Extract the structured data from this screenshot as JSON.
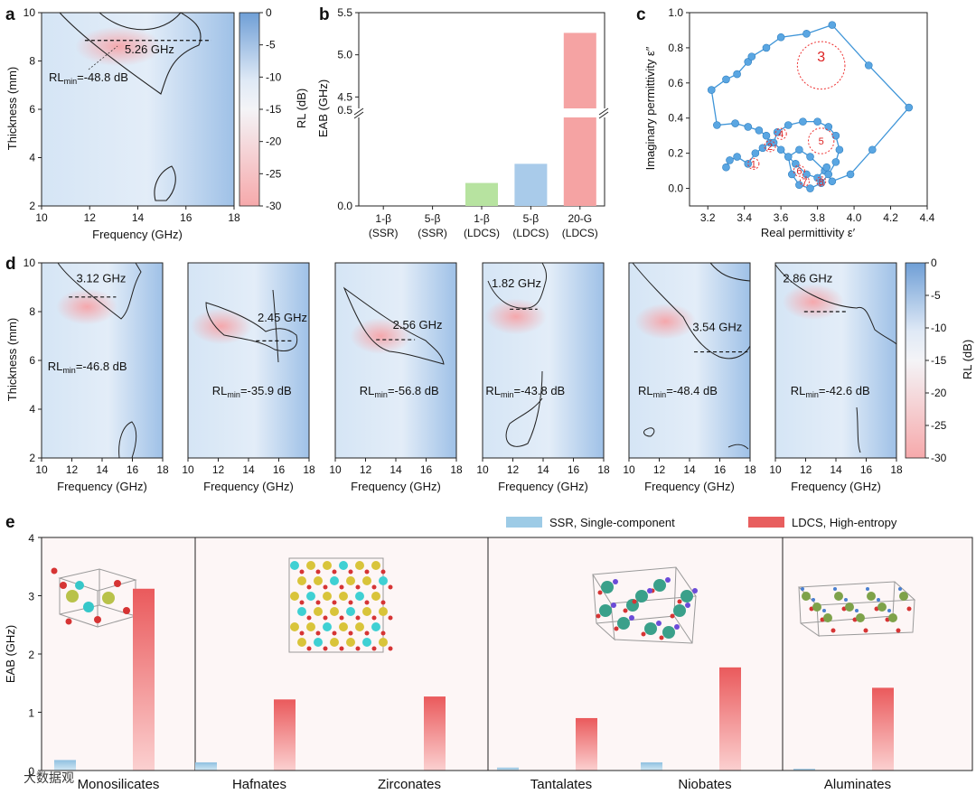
{
  "panels": {
    "a": "a",
    "b": "b",
    "c": "c",
    "d": "d",
    "e": "e"
  },
  "watermark": "大数据观",
  "chart_data": [
    {
      "id": "a",
      "type": "heatmap",
      "xlabel": "Frequency (GHz)",
      "ylabel": "Thickness (mm)",
      "xlim": [
        10,
        18
      ],
      "ylim": [
        2,
        10
      ],
      "xticks": [
        "10",
        "12",
        "14",
        "16",
        "18"
      ],
      "yticks": [
        "2",
        "4",
        "6",
        "8",
        "10"
      ],
      "colorbar": {
        "label": "RL (dB)",
        "range": [
          -30,
          0
        ],
        "ticks": [
          "0",
          "-5",
          "-10",
          "-15",
          "-20",
          "-25",
          "-30"
        ]
      },
      "annotations": {
        "bandwidth": "5.26 GHz",
        "rlmin_value": "=-48.8 dB"
      },
      "rlmin_label": "RL",
      "rlmin_sub": "min",
      "band": {
        "x1": 11.8,
        "x2": 17.06,
        "y": 8.85
      },
      "hotspot": {
        "x": 13.2,
        "y": 8.6
      }
    },
    {
      "id": "b",
      "type": "bar",
      "ylabel": "EAB (GHz)",
      "categories": [
        "1-β (SSR)",
        "5-β (SSR)",
        "1-β (LDCS)",
        "5-β (LDCS)",
        "20-G (LDCS)"
      ],
      "cat_line1": [
        "1-β",
        "5-β",
        "1-β",
        "5-β",
        "20-G"
      ],
      "cat_line2": [
        "(SSR)",
        "(SSR)",
        "(LDCS)",
        "(LDCS)",
        "(LDCS)"
      ],
      "values": [
        0,
        0,
        0.12,
        0.22,
        5.26
      ],
      "colors": [
        "#cccccc",
        "#cccccc",
        "#b7e3a0",
        "#a9cbea",
        "#f5a3a3"
      ],
      "axis_break": [
        0.5,
        4.3
      ],
      "yticks": [
        "0.0",
        "0.5",
        "4.5",
        "5.0",
        "5.5"
      ],
      "ylim": [
        0,
        5.5
      ]
    },
    {
      "id": "c",
      "type": "scatter",
      "xlabel": "Real permittivity ε′",
      "ylabel": "Imaginary permittivity ε″",
      "xlim": [
        3.1,
        4.4
      ],
      "ylim": [
        -0.1,
        1.0
      ],
      "xticks": [
        "3.2",
        "3.4",
        "3.6",
        "3.8",
        "4.0",
        "4.2",
        "4.4"
      ],
      "yticks": [
        "0.0",
        "0.2",
        "0.4",
        "0.6",
        "0.8",
        "1.0"
      ],
      "points": [
        [
          3.3,
          0.12
        ],
        [
          3.32,
          0.16
        ],
        [
          3.36,
          0.18
        ],
        [
          3.42,
          0.14
        ],
        [
          3.46,
          0.2
        ],
        [
          3.5,
          0.23
        ],
        [
          3.54,
          0.26
        ],
        [
          3.52,
          0.3
        ],
        [
          3.48,
          0.33
        ],
        [
          3.42,
          0.35
        ],
        [
          3.35,
          0.37
        ],
        [
          3.25,
          0.36
        ],
        [
          3.22,
          0.56
        ],
        [
          3.3,
          0.62
        ],
        [
          3.36,
          0.65
        ],
        [
          3.42,
          0.72
        ],
        [
          3.44,
          0.75
        ],
        [
          3.52,
          0.8
        ],
        [
          3.6,
          0.86
        ],
        [
          3.74,
          0.88
        ],
        [
          3.88,
          0.93
        ],
        [
          4.08,
          0.7
        ],
        [
          4.3,
          0.46
        ],
        [
          4.1,
          0.22
        ],
        [
          3.98,
          0.08
        ],
        [
          3.88,
          0.04
        ],
        [
          3.84,
          0.1
        ],
        [
          3.76,
          0.18
        ],
        [
          3.7,
          0.22
        ],
        [
          3.64,
          0.18
        ],
        [
          3.66,
          0.08
        ],
        [
          3.7,
          0.02
        ],
        [
          3.76,
          0.0
        ],
        [
          3.82,
          0.03
        ],
        [
          3.86,
          0.08
        ],
        [
          3.9,
          0.15
        ],
        [
          3.92,
          0.22
        ],
        [
          3.9,
          0.3
        ],
        [
          3.86,
          0.35
        ],
        [
          3.8,
          0.38
        ],
        [
          3.72,
          0.38
        ],
        [
          3.64,
          0.36
        ],
        [
          3.58,
          0.32
        ],
        [
          3.56,
          0.26
        ],
        [
          3.6,
          0.22
        ],
        [
          3.68,
          0.14
        ],
        [
          3.74,
          0.08
        ],
        [
          3.8,
          0.06
        ],
        [
          3.85,
          0.12
        ]
      ],
      "circle_labels": [
        "1",
        "2",
        "3",
        "4",
        "5",
        "6",
        "7",
        "8"
      ],
      "circles": [
        {
          "x": 3.45,
          "y": 0.14,
          "r": 0.03
        },
        {
          "x": 3.54,
          "y": 0.24,
          "r": 0.03
        },
        {
          "x": 3.82,
          "y": 0.7,
          "r": 0.13
        },
        {
          "x": 3.6,
          "y": 0.31,
          "r": 0.03
        },
        {
          "x": 3.82,
          "y": 0.27,
          "r": 0.07
        },
        {
          "x": 3.7,
          "y": 0.1,
          "r": 0.03
        },
        {
          "x": 3.73,
          "y": 0.04,
          "r": 0.025
        },
        {
          "x": 3.82,
          "y": 0.04,
          "r": 0.025
        }
      ]
    },
    {
      "id": "d",
      "type": "heatmap",
      "xlabel": "Frequency (GHz)",
      "ylabel": "Thickness (mm)",
      "xlim": [
        10,
        18
      ],
      "ylim": [
        2,
        10
      ],
      "xticks": [
        "10",
        "12",
        "14",
        "16",
        "18"
      ],
      "yticks": [
        "2",
        "4",
        "6",
        "8",
        "10"
      ],
      "colorbar": {
        "label": "RL (dB)",
        "range": [
          -30,
          0
        ],
        "ticks": [
          "0",
          "-5",
          "-10",
          "-15",
          "-20",
          "-25",
          "-30"
        ]
      },
      "rlmin_label": "RL",
      "rlmin_sub": "min",
      "subplots": [
        {
          "bandwidth": "3.12 GHz",
          "rlmin_value": "=-46.8 dB",
          "band": {
            "x1": 11.8,
            "x2": 14.92,
            "y": 8.6
          },
          "hotspot": {
            "x": 13,
            "y": 8.2
          },
          "bw_pos": {
            "x": 12.3,
            "y": 9.2
          },
          "rl_pos": {
            "x": 10.4,
            "y": 5.6
          }
        },
        {
          "bandwidth": "2.45 GHz",
          "rlmin_value": "=-35.9 dB",
          "band": {
            "x1": 14.5,
            "x2": 16.95,
            "y": 6.8
          },
          "hotspot": {
            "x": 12.2,
            "y": 7.4
          },
          "bw_pos": {
            "x": 14.6,
            "y": 7.6
          },
          "rl_pos": {
            "x": 11.6,
            "y": 4.6
          }
        },
        {
          "bandwidth": "2.56 GHz",
          "rlmin_value": "=-56.8 dB",
          "band": {
            "x1": 12.7,
            "x2": 15.26,
            "y": 6.85
          },
          "hotspot": {
            "x": 13,
            "y": 7.0
          },
          "bw_pos": {
            "x": 13.8,
            "y": 7.3
          },
          "rl_pos": {
            "x": 11.6,
            "y": 4.6
          }
        },
        {
          "bandwidth": "1.82 GHz",
          "rlmin_value": "=-43.8 dB",
          "band": {
            "x1": 11.8,
            "x2": 13.62,
            "y": 8.1
          },
          "hotspot": {
            "x": 12.2,
            "y": 7.8
          },
          "bw_pos": {
            "x": 10.6,
            "y": 9.0
          },
          "rl_pos": {
            "x": 10.2,
            "y": 4.6
          }
        },
        {
          "bandwidth": "3.54 GHz",
          "rlmin_value": "=-48.4 dB",
          "band": {
            "x1": 14.3,
            "x2": 17.84,
            "y": 6.35
          },
          "hotspot": {
            "x": 12.4,
            "y": 7.6
          },
          "bw_pos": {
            "x": 14.2,
            "y": 7.2
          },
          "rl_pos": {
            "x": 10.6,
            "y": 4.6
          }
        },
        {
          "bandwidth": "2.86 GHz",
          "rlmin_value": "=-42.6 dB",
          "band": {
            "x1": 11.9,
            "x2": 14.76,
            "y": 8.0
          },
          "hotspot": {
            "x": 12.5,
            "y": 8.4
          },
          "bw_pos": {
            "x": 10.5,
            "y": 9.2
          },
          "rl_pos": {
            "x": 11.0,
            "y": 4.6
          }
        }
      ]
    },
    {
      "id": "e",
      "type": "bar",
      "ylabel": "EAB (GHz)",
      "categories": [
        "Monosilicates",
        "Hafnates",
        "Zirconates",
        "Tantalates",
        "Niobates",
        "Aluminates"
      ],
      "series": [
        {
          "name": "SSR, Single-component",
          "color": "#9dcbe6",
          "values": [
            0.18,
            0.14,
            0,
            0.05,
            0.14,
            0.03
          ]
        },
        {
          "name": "LDCS, High-entropy",
          "color": "#e85e5e",
          "values": [
            3.12,
            1.22,
            1.27,
            0.9,
            1.77,
            1.42
          ]
        }
      ],
      "groups": [
        [
          "Monosilicates"
        ],
        [
          "Hafnates",
          "Zirconates"
        ],
        [
          "Tantalates",
          "Niobates"
        ],
        [
          "Aluminates"
        ]
      ],
      "ylim": [
        0,
        4
      ],
      "yticks": [
        "0",
        "1",
        "2",
        "3",
        "4"
      ]
    }
  ]
}
